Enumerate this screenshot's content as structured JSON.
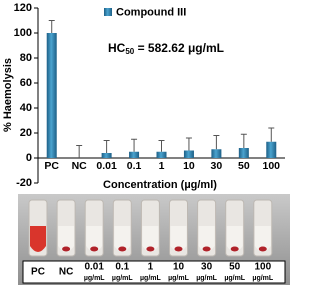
{
  "chart_data": {
    "type": "bar",
    "legend_text": "Compound III",
    "annotation": {
      "prefix": "HC",
      "subscript": "50",
      "suffix": " = 582.62 μg/mL"
    },
    "y_label": "% Haemolysis",
    "x_label": "Concentration (µg/ml)",
    "categories": [
      "PC",
      "NC",
      "0.01",
      "0.1",
      "1",
      "10",
      "30",
      "50",
      "100"
    ],
    "series": [
      {
        "name": "Compound III",
        "color": "#2f7fae",
        "values": [
          100,
          0,
          4,
          5,
          5,
          6,
          7,
          8,
          13
        ],
        "errors": [
          10,
          10,
          10,
          10,
          9,
          10,
          11,
          11,
          11
        ]
      }
    ],
    "ylim": [
      -20,
      120
    ],
    "yticks": [
      -20,
      0,
      20,
      40,
      60,
      80,
      100,
      120
    ]
  },
  "photo": {
    "labels": [
      "PC",
      "NC",
      "0.01",
      "0.1",
      "1",
      "10",
      "30",
      "50",
      "100"
    ],
    "units": [
      null,
      null,
      "µg/mL",
      "µg/mL",
      "µg/mL",
      "µg/mL",
      "µg/mL",
      "µg/mL",
      "µg/mL"
    ]
  }
}
